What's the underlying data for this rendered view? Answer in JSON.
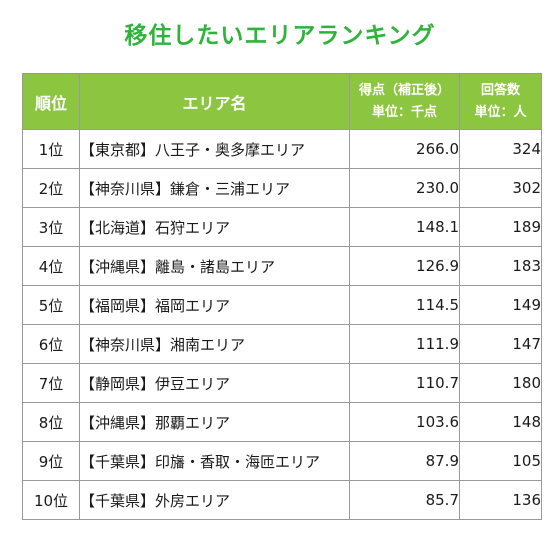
{
  "title": "移住したいエリアランキング",
  "headers": {
    "rank": "順位",
    "area": "エリア名",
    "score_line1": "得点（補正後）",
    "score_line2": "単位：千点",
    "count_line1": "回答数",
    "count_line2": "単位：人"
  },
  "rows": [
    {
      "rank": "1位",
      "area": "【東京都】八王子・奥多摩エリア",
      "score": "266.0",
      "count": "324"
    },
    {
      "rank": "2位",
      "area": "【神奈川県】鎌倉・三浦エリア",
      "score": "230.0",
      "count": "302"
    },
    {
      "rank": "3位",
      "area": "【北海道】石狩エリア",
      "score": "148.1",
      "count": "189"
    },
    {
      "rank": "4位",
      "area": "【沖縄県】離島・諸島エリア",
      "score": "126.9",
      "count": "183"
    },
    {
      "rank": "5位",
      "area": "【福岡県】福岡エリア",
      "score": "114.5",
      "count": "149"
    },
    {
      "rank": "6位",
      "area": "【神奈川県】湘南エリア",
      "score": "111.9",
      "count": "147"
    },
    {
      "rank": "7位",
      "area": "【静岡県】伊豆エリア",
      "score": "110.7",
      "count": "180"
    },
    {
      "rank": "8位",
      "area": "【沖縄県】那覇エリア",
      "score": "103.6",
      "count": "148"
    },
    {
      "rank": "9位",
      "area": "【千葉県】印旛・香取・海匝エリア",
      "score": "87.9",
      "count": "105"
    },
    {
      "rank": "10位",
      "area": "【千葉県】外房エリア",
      "score": "85.7",
      "count": "136"
    }
  ],
  "colors": {
    "title": "#2fb33a",
    "header_bg": "#8cc641",
    "header_text": "#ffffff",
    "border": "#9a9a9a"
  }
}
